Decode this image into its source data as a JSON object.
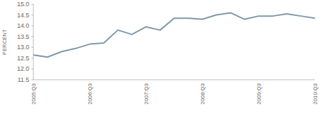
{
  "chart_data": {
    "type": "line",
    "y_label": "PERCENT",
    "categories": [
      "2005:Q3",
      null,
      null,
      null,
      "2006:Q3",
      null,
      null,
      null,
      "2007:Q3",
      null,
      null,
      null,
      "2008:Q3",
      null,
      null,
      null,
      "2009:Q3",
      null,
      null,
      null,
      "2010:Q3"
    ],
    "values": [
      12.65,
      12.55,
      12.8,
      12.95,
      13.15,
      13.2,
      13.8,
      13.6,
      13.95,
      13.8,
      14.35,
      14.35,
      14.3,
      14.5,
      14.6,
      14.3,
      14.45,
      14.45,
      14.55,
      14.45,
      14.35
    ],
    "color": "#7f98a8",
    "ylim": [
      11.5,
      15
    ],
    "yticks": [
      11.5,
      {
        "value": 12,
        "label": "12.0"
      },
      12.5,
      {
        "value": 13,
        "label": "13.0"
      },
      13.5,
      {
        "value": 14,
        "label": "14.0"
      },
      14.5,
      {
        "value": 15,
        "label": "15.0"
      }
    ],
    "grid": false
  }
}
